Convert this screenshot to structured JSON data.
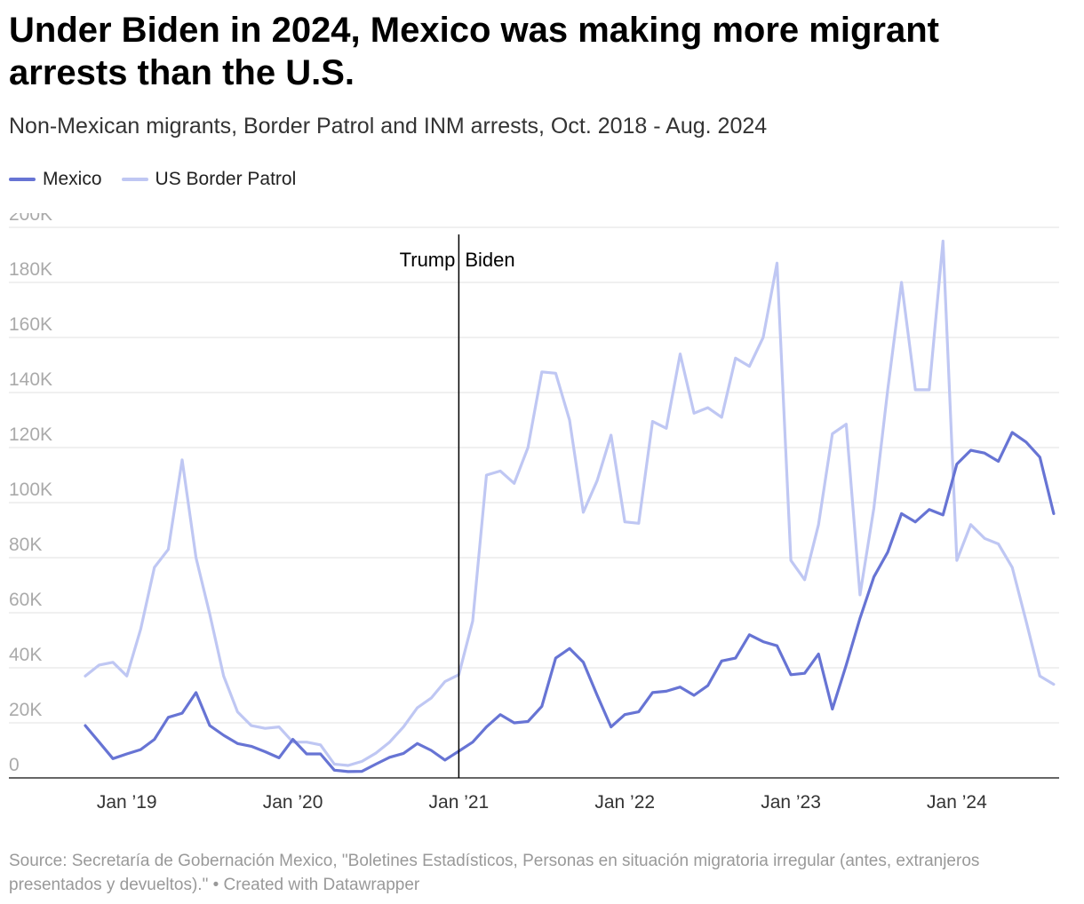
{
  "title": "Under Biden in 2024, Mexico was making more migrant arrests than the U.S.",
  "subtitle": "Non-Mexican migrants, Border Patrol and INM arrests, Oct. 2018 - Aug. 2024",
  "source": "Source: Secretaría de Gobernación Mexico, \"Boletines Estadísticos, Personas en situación migratoria irregular (antes, extranjeros presentados y devueltos).\" • Created with Datawrapper",
  "colors": {
    "mexico": "#6774d4",
    "us": "#bfc7f3",
    "grid": "#e2e2e2",
    "axis": "#000000"
  },
  "chart_data": {
    "type": "line",
    "x_start": "2018-10",
    "x_end": "2024-08",
    "x_ticks": [
      {
        "label": "Jan ’19",
        "month": "2019-01"
      },
      {
        "label": "Jan ’20",
        "month": "2020-01"
      },
      {
        "label": "Jan ’21",
        "month": "2021-01"
      },
      {
        "label": "Jan ’22",
        "month": "2022-01"
      },
      {
        "label": "Jan ’23",
        "month": "2023-01"
      },
      {
        "label": "Jan ’24",
        "month": "2024-01"
      }
    ],
    "y_ticks": [
      "0",
      "20K",
      "40K",
      "60K",
      "80K",
      "100K",
      "120K",
      "140K",
      "160K",
      "180K",
      "200K"
    ],
    "ylim": [
      0,
      200000
    ],
    "grid": true,
    "legend_position": "top-left",
    "annotation": {
      "month": "2021-01",
      "left_label": "Trump",
      "right_label": "Biden"
    },
    "series": [
      {
        "name": "Mexico",
        "values": [
          19000,
          13000,
          7000,
          8700,
          10300,
          14000,
          22000,
          23500,
          31000,
          19000,
          15500,
          12500,
          11500,
          9500,
          7300,
          14000,
          8700,
          8700,
          2800,
          2300,
          2400,
          5000,
          7500,
          8900,
          12500,
          10000,
          6500,
          9700,
          13000,
          18500,
          23000,
          20000,
          20500,
          26000,
          43500,
          47000,
          42000,
          30000,
          18500,
          23000,
          24000,
          31000,
          31500,
          33000,
          30000,
          33500,
          42500,
          43500,
          52000,
          49500,
          48000,
          37500,
          38000,
          45000,
          25000,
          41000,
          58000,
          73000,
          82000,
          96000,
          93000,
          97500,
          95500,
          114000,
          119000,
          118000,
          115000,
          125500,
          122000,
          116500,
          96000
        ]
      },
      {
        "name": "US Border Patrol",
        "values": [
          37000,
          41000,
          42000,
          37000,
          54000,
          76500,
          83000,
          115500,
          80000,
          59500,
          37000,
          24000,
          19000,
          18000,
          18500,
          13000,
          13000,
          12000,
          5000,
          4500,
          6000,
          9000,
          13000,
          18500,
          25500,
          29000,
          35000,
          37500,
          57000,
          110000,
          111500,
          107000,
          120000,
          147500,
          147000,
          130000,
          96500,
          108000,
          124500,
          93000,
          92500,
          129500,
          127000,
          154000,
          132500,
          134500,
          131000,
          152500,
          149500,
          160000,
          187000,
          79000,
          72000,
          92000,
          125000,
          128500,
          66500,
          98000,
          141000,
          180000,
          141000,
          141000,
          195000,
          79000,
          92000,
          87000,
          85000,
          76500,
          57000,
          37000,
          34000
        ]
      }
    ]
  }
}
